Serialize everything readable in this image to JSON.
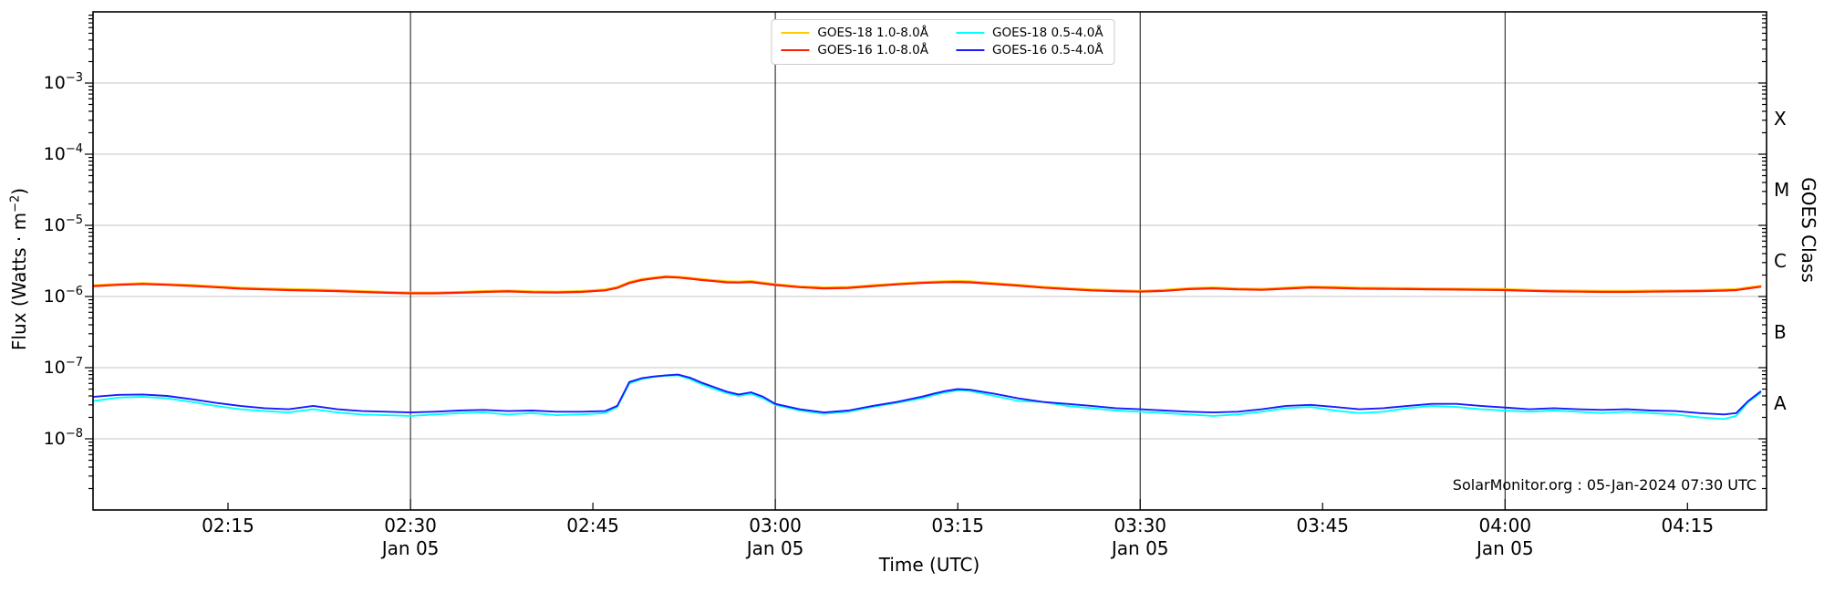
{
  "figure": {
    "watermark": "SolarMonitor.org : 05-Jan-2024 07:30 UTC"
  },
  "chart_data": {
    "type": "line",
    "title": "",
    "xlabel": "Time (UTC)",
    "ylabel_parts": {
      "prefix": "Flux (Watts · m",
      "sup": "−2",
      "suffix": ")"
    },
    "ylabel_right": "GOES Class",
    "y_scale": "log",
    "ylim": [
      1e-09,
      0.01
    ],
    "grid": "horizontal-decades",
    "legend_position": "top-center",
    "x_unit": "minutes after 02:00 UTC, 05-Jan-2024",
    "x_domain": [
      3.9,
      141.5
    ],
    "x_ticks": [
      {
        "t": 15,
        "label": "02:15",
        "date": ""
      },
      {
        "t": 30,
        "label": "02:30",
        "date": "Jan 05"
      },
      {
        "t": 45,
        "label": "02:45",
        "date": ""
      },
      {
        "t": 60,
        "label": "03:00",
        "date": "Jan 05"
      },
      {
        "t": 75,
        "label": "03:15",
        "date": ""
      },
      {
        "t": 90,
        "label": "03:30",
        "date": "Jan 05"
      },
      {
        "t": 105,
        "label": "03:45",
        "date": ""
      },
      {
        "t": 120,
        "label": "04:00",
        "date": "Jan 05"
      },
      {
        "t": 135,
        "label": "04:15",
        "date": ""
      }
    ],
    "left_tick_exponents": [
      -3,
      -4,
      -5,
      -6,
      -7,
      -8
    ],
    "goes_classes": [
      {
        "label": "X",
        "log_center": -3.5
      },
      {
        "label": "M",
        "log_center": -4.5
      },
      {
        "label": "C",
        "log_center": -5.5
      },
      {
        "label": "B",
        "log_center": -6.5
      },
      {
        "label": "A",
        "log_center": -7.5
      }
    ],
    "colors": {
      "grid": "#c4c4c4",
      "frame": "#000000",
      "major_vline": "#111111"
    },
    "x_minutes": [
      4,
      6,
      8,
      10,
      12,
      14,
      16,
      18,
      20,
      22,
      24,
      26,
      28,
      30,
      32,
      34,
      36,
      38,
      40,
      42,
      44,
      46,
      47,
      48,
      49,
      50,
      51,
      52,
      53,
      54,
      55,
      56,
      57,
      58,
      59,
      60,
      62,
      64,
      66,
      68,
      70,
      72,
      73,
      74,
      75,
      76,
      78,
      80,
      82,
      84,
      86,
      88,
      90,
      92,
      94,
      96,
      98,
      100,
      102,
      104,
      106,
      108,
      110,
      112,
      114,
      116,
      118,
      120,
      122,
      124,
      126,
      128,
      130,
      132,
      134,
      136,
      138,
      139,
      140,
      141
    ],
    "series": [
      {
        "id": "goes18-long",
        "label": "GOES-18 1.0-8.0Å",
        "color": "#ffcc00",
        "scale": 1e-06,
        "width": 2.2,
        "values": [
          1.44,
          1.5,
          1.54,
          1.5,
          1.45,
          1.39,
          1.33,
          1.3,
          1.27,
          1.25,
          1.23,
          1.19,
          1.16,
          1.14,
          1.14,
          1.16,
          1.19,
          1.21,
          1.18,
          1.17,
          1.19,
          1.26,
          1.36,
          1.6,
          1.75,
          1.85,
          1.93,
          1.9,
          1.83,
          1.75,
          1.69,
          1.63,
          1.62,
          1.65,
          1.57,
          1.49,
          1.39,
          1.34,
          1.36,
          1.44,
          1.52,
          1.6,
          1.62,
          1.64,
          1.65,
          1.63,
          1.55,
          1.46,
          1.37,
          1.31,
          1.26,
          1.23,
          1.2,
          1.24,
          1.31,
          1.34,
          1.3,
          1.28,
          1.33,
          1.38,
          1.36,
          1.33,
          1.32,
          1.31,
          1.3,
          1.29,
          1.28,
          1.27,
          1.24,
          1.22,
          1.21,
          1.2,
          1.2,
          1.21,
          1.22,
          1.23,
          1.25,
          1.27,
          1.34,
          1.41
        ]
      },
      {
        "id": "goes16-long",
        "label": "GOES-16 1.0-8.0Å",
        "color": "#ff1e00",
        "scale": 1e-06,
        "width": 2.2,
        "values": [
          1.4,
          1.46,
          1.5,
          1.46,
          1.41,
          1.35,
          1.29,
          1.26,
          1.23,
          1.21,
          1.19,
          1.16,
          1.13,
          1.11,
          1.11,
          1.13,
          1.16,
          1.18,
          1.15,
          1.14,
          1.16,
          1.22,
          1.32,
          1.55,
          1.7,
          1.8,
          1.88,
          1.85,
          1.78,
          1.7,
          1.64,
          1.58,
          1.57,
          1.6,
          1.52,
          1.45,
          1.35,
          1.3,
          1.32,
          1.4,
          1.48,
          1.55,
          1.57,
          1.59,
          1.6,
          1.58,
          1.5,
          1.42,
          1.33,
          1.27,
          1.22,
          1.19,
          1.17,
          1.2,
          1.27,
          1.3,
          1.26,
          1.24,
          1.29,
          1.34,
          1.32,
          1.29,
          1.28,
          1.27,
          1.26,
          1.25,
          1.24,
          1.23,
          1.2,
          1.18,
          1.17,
          1.16,
          1.16,
          1.17,
          1.18,
          1.19,
          1.21,
          1.23,
          1.3,
          1.37
        ]
      },
      {
        "id": "goes18-short",
        "label": "GOES-18 0.5-4.0Å",
        "color": "#00ffff",
        "scale": 1e-08,
        "width": 1.9,
        "values": [
          3.4,
          3.8,
          3.9,
          3.7,
          3.3,
          2.9,
          2.6,
          2.45,
          2.35,
          2.6,
          2.35,
          2.2,
          2.15,
          2.1,
          2.2,
          2.3,
          2.35,
          2.2,
          2.3,
          2.15,
          2.2,
          2.3,
          2.8,
          6.0,
          6.9,
          7.4,
          7.7,
          7.8,
          6.9,
          5.8,
          5.0,
          4.4,
          4.0,
          4.3,
          3.7,
          3.0,
          2.5,
          2.25,
          2.4,
          2.8,
          3.2,
          3.7,
          4.1,
          4.5,
          4.8,
          4.7,
          4.0,
          3.4,
          3.3,
          2.9,
          2.7,
          2.5,
          2.4,
          2.3,
          2.2,
          2.1,
          2.2,
          2.4,
          2.7,
          2.8,
          2.5,
          2.3,
          2.4,
          2.7,
          2.9,
          2.8,
          2.6,
          2.5,
          2.4,
          2.5,
          2.4,
          2.3,
          2.4,
          2.3,
          2.2,
          2.0,
          1.9,
          2.1,
          3.3,
          4.4
        ]
      },
      {
        "id": "goes16-short",
        "label": "GOES-16 0.5-4.0Å",
        "color": "#1a1aff",
        "scale": 1e-08,
        "width": 1.9,
        "values": [
          3.9,
          4.15,
          4.2,
          4.0,
          3.6,
          3.2,
          2.9,
          2.7,
          2.6,
          2.9,
          2.6,
          2.45,
          2.4,
          2.35,
          2.4,
          2.5,
          2.55,
          2.45,
          2.5,
          2.4,
          2.4,
          2.45,
          2.9,
          6.3,
          7.1,
          7.5,
          7.8,
          8.0,
          7.2,
          6.1,
          5.3,
          4.6,
          4.2,
          4.5,
          3.9,
          3.1,
          2.6,
          2.35,
          2.5,
          2.9,
          3.3,
          3.9,
          4.3,
          4.7,
          5.0,
          4.9,
          4.3,
          3.7,
          3.3,
          3.1,
          2.9,
          2.7,
          2.6,
          2.5,
          2.4,
          2.35,
          2.4,
          2.6,
          2.9,
          3.0,
          2.8,
          2.6,
          2.7,
          2.9,
          3.1,
          3.1,
          2.9,
          2.75,
          2.6,
          2.7,
          2.6,
          2.55,
          2.6,
          2.5,
          2.45,
          2.3,
          2.2,
          2.3,
          3.4,
          4.6
        ]
      }
    ]
  }
}
